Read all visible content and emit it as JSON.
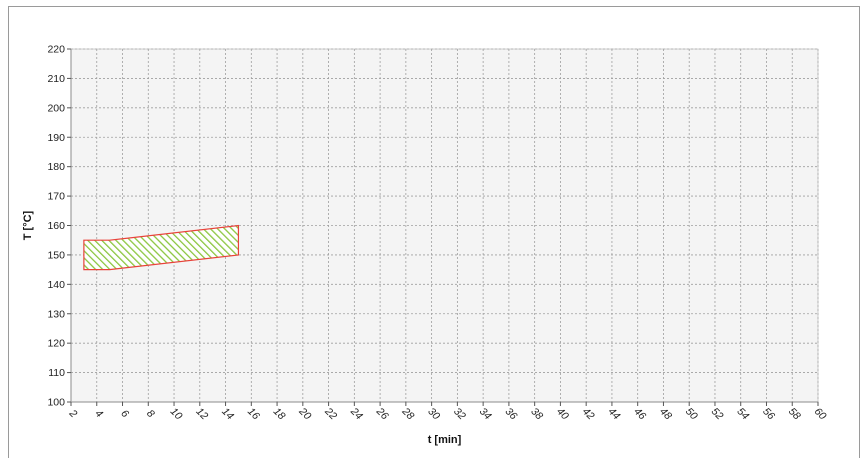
{
  "chart_data": {
    "type": "area",
    "title": "",
    "xlabel": "t [min]",
    "ylabel": "T [°C]",
    "xlim": [
      2,
      60
    ],
    "ylim": [
      100,
      220
    ],
    "x_ticks": [
      2,
      4,
      6,
      8,
      10,
      12,
      14,
      16,
      18,
      20,
      22,
      24,
      26,
      28,
      30,
      32,
      34,
      36,
      38,
      40,
      42,
      44,
      46,
      48,
      50,
      52,
      54,
      56,
      58,
      60
    ],
    "y_ticks": [
      100,
      110,
      120,
      130,
      140,
      150,
      160,
      170,
      180,
      190,
      200,
      210,
      220
    ],
    "grid": true,
    "legend": "none",
    "series": [
      {
        "upper": [
          [
            3,
            155
          ],
          [
            5,
            155
          ],
          [
            15,
            160
          ]
        ],
        "lower": [
          [
            3,
            145
          ],
          [
            5,
            145
          ],
          [
            15,
            150
          ]
        ],
        "fill": "hatched",
        "edge_color": "#e8423a",
        "hatch_color": "#8cc63f"
      }
    ],
    "colors": {
      "plot_background": "#f4f4f4",
      "grid": "#9e9e9e"
    }
  }
}
